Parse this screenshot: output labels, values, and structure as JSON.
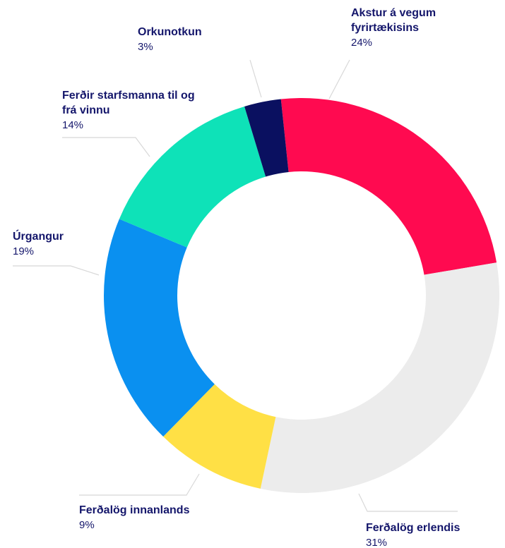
{
  "chart_data": {
    "type": "donut",
    "categories": [
      "Akstur á vegum fyrirtækisins",
      "Ferðalög erlendis",
      "Ferðalög innanlands",
      "Úrgangur",
      "Ferðir starfsmanna til og frá vinnu",
      "Orkunotkun"
    ],
    "values": [
      24,
      31,
      9,
      19,
      14,
      3
    ],
    "value_labels": [
      "24%",
      "31%",
      "9%",
      "19%",
      "14%",
      "3%"
    ],
    "colors": [
      "#ff0a50",
      "#ececec",
      "#ffe045",
      "#0a90f0",
      "#0ee2b8",
      "#0a1060"
    ]
  }
}
